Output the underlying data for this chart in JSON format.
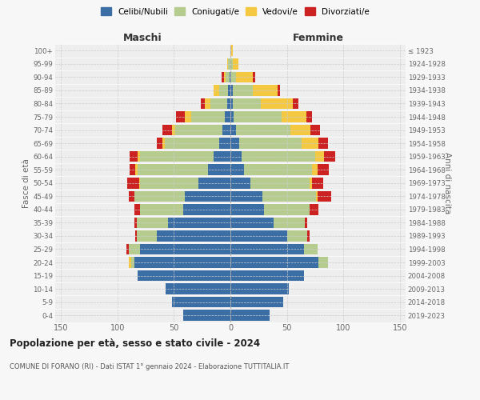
{
  "age_groups": [
    "0-4",
    "5-9",
    "10-14",
    "15-19",
    "20-24",
    "25-29",
    "30-34",
    "35-39",
    "40-44",
    "45-49",
    "50-54",
    "55-59",
    "60-64",
    "65-69",
    "70-74",
    "75-79",
    "80-84",
    "85-89",
    "90-94",
    "95-99",
    "100+"
  ],
  "birth_years": [
    "2019-2023",
    "2014-2018",
    "2009-2013",
    "2004-2008",
    "1999-2003",
    "1994-1998",
    "1989-1993",
    "1984-1988",
    "1979-1983",
    "1974-1978",
    "1969-1973",
    "1964-1968",
    "1959-1963",
    "1954-1958",
    "1949-1953",
    "1944-1948",
    "1939-1943",
    "1934-1938",
    "1929-1933",
    "1924-1928",
    "≤ 1923"
  ],
  "colors": {
    "celibi": "#3a6ea5",
    "coniugati": "#b5cc8e",
    "vedovi": "#f5c842",
    "divorziati": "#cc2222"
  },
  "maschi": {
    "celibi": [
      42,
      52,
      57,
      82,
      85,
      80,
      65,
      55,
      42,
      40,
      28,
      20,
      15,
      10,
      7,
      5,
      3,
      2,
      1,
      0,
      0
    ],
    "coniugati": [
      0,
      0,
      0,
      0,
      3,
      10,
      18,
      28,
      38,
      45,
      52,
      62,
      65,
      48,
      42,
      30,
      15,
      8,
      3,
      2,
      0
    ],
    "vedovi": [
      0,
      0,
      0,
      0,
      2,
      0,
      0,
      0,
      0,
      0,
      1,
      2,
      2,
      2,
      3,
      5,
      5,
      5,
      2,
      1,
      0
    ],
    "divorziati": [
      0,
      0,
      0,
      0,
      0,
      2,
      1,
      2,
      5,
      5,
      10,
      5,
      7,
      5,
      8,
      8,
      3,
      0,
      2,
      0,
      0
    ]
  },
  "femmine": {
    "celibi": [
      35,
      47,
      52,
      65,
      78,
      65,
      50,
      38,
      30,
      28,
      18,
      12,
      10,
      8,
      5,
      3,
      2,
      2,
      0,
      0,
      0
    ],
    "coniugati": [
      0,
      0,
      0,
      0,
      8,
      12,
      18,
      28,
      40,
      48,
      52,
      60,
      65,
      55,
      48,
      42,
      25,
      18,
      5,
      2,
      0
    ],
    "vedovi": [
      0,
      0,
      0,
      0,
      0,
      0,
      0,
      0,
      0,
      1,
      2,
      5,
      8,
      15,
      18,
      22,
      28,
      22,
      15,
      5,
      2
    ],
    "divorziati": [
      0,
      0,
      0,
      0,
      0,
      0,
      2,
      2,
      8,
      12,
      10,
      10,
      10,
      8,
      8,
      5,
      5,
      2,
      2,
      0,
      0
    ]
  },
  "xlim": 155,
  "title_main": "Popolazione per età, sesso e stato civile - 2024",
  "title_sub": "COMUNE DI FORANO (RI) - Dati ISTAT 1° gennaio 2024 - Elaborazione TUTTITALIA.IT",
  "label_maschi": "Maschi",
  "label_femmine": "Femmine",
  "ylabel_left": "Fasce di età",
  "ylabel_right": "Anni di nascita",
  "legend_labels": [
    "Celibi/Nubili",
    "Coniugati/e",
    "Vedovi/e",
    "Divorziati/e"
  ],
  "bg_color": "#f7f7f7",
  "plot_bg": "#eeeeee"
}
